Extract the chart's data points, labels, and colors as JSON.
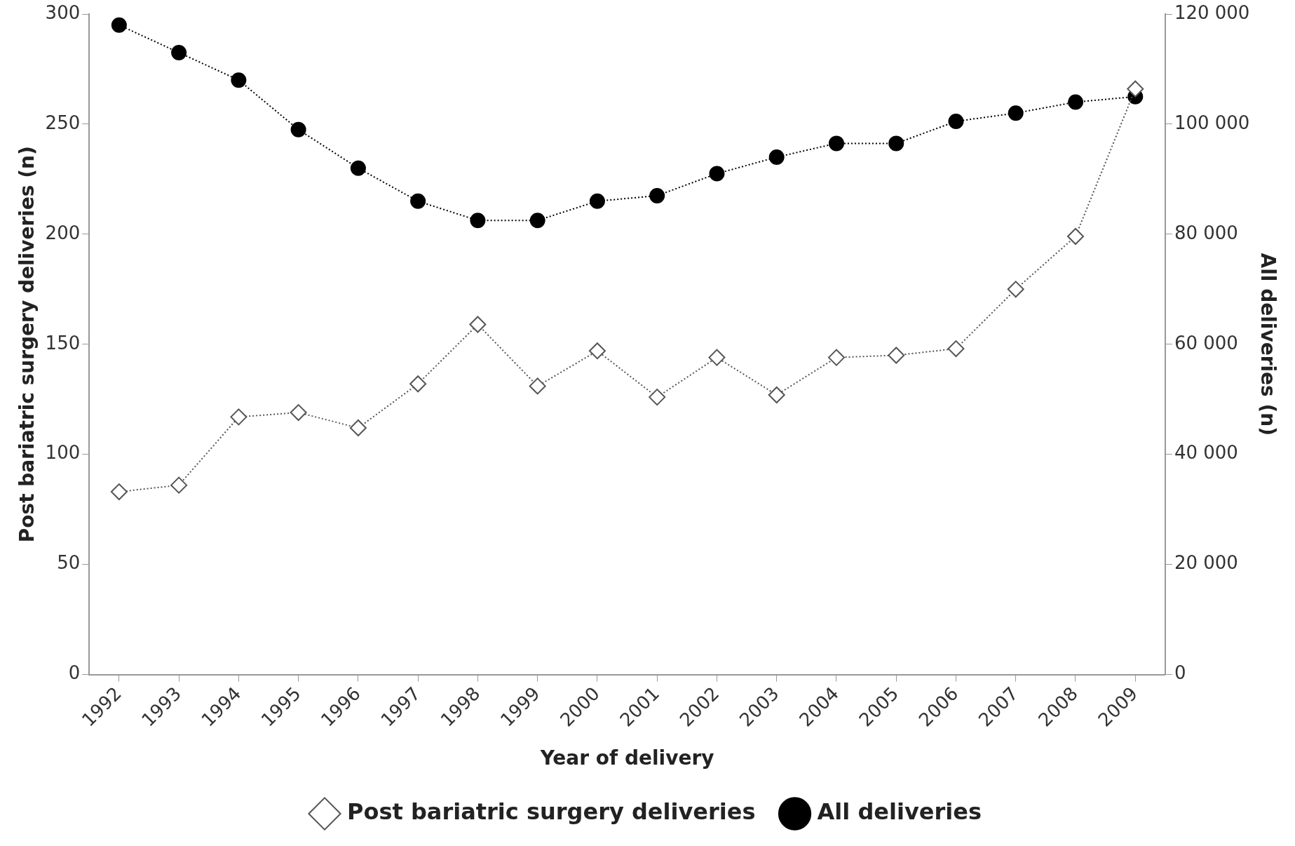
{
  "chart_data": {
    "type": "line",
    "xlabel": "Year of delivery",
    "ylabel": "Post bariatric surgery deliveries (n)",
    "y2label": "All deliveries (n)",
    "categories": [
      "1992",
      "1993",
      "1994",
      "1995",
      "1996",
      "1997",
      "1998",
      "1999",
      "2000",
      "2001",
      "2002",
      "2003",
      "2004",
      "2005",
      "2006",
      "2007",
      "2008",
      "2009"
    ],
    "series": [
      {
        "name": "Post bariatric surgery deliveries",
        "color": "#555555",
        "marker": "diamond",
        "values": [
          83,
          86,
          117,
          119,
          112,
          132,
          159,
          131,
          147,
          126,
          144,
          127,
          144,
          145,
          148,
          175,
          199,
          266
        ]
      },
      {
        "name": "All deliveries",
        "color": "#000000",
        "marker": "circle",
        "axis": "y2",
        "values": [
          118000,
          113000,
          108000,
          99000,
          92000,
          86000,
          82500,
          82500,
          86000,
          87000,
          91000,
          94000,
          96500,
          96500,
          100500,
          102000,
          104000,
          105000
        ]
      }
    ],
    "ylim": [
      0,
      300
    ],
    "yticks": [
      0,
      50,
      100,
      150,
      200,
      250,
      300
    ],
    "y2lim": [
      0,
      120000
    ],
    "y2ticks": [
      0,
      {
        "value": 20000,
        "label": "20 000"
      },
      {
        "value": 40000,
        "label": "40 000"
      },
      {
        "value": 60000,
        "label": "60 000"
      },
      {
        "value": 80000,
        "label": "80 000"
      },
      {
        "value": 100000,
        "label": "100 000"
      },
      {
        "value": 120000,
        "label": "120 000"
      }
    ],
    "line_style": "dotted",
    "legend": "bottom",
    "grid": false
  }
}
